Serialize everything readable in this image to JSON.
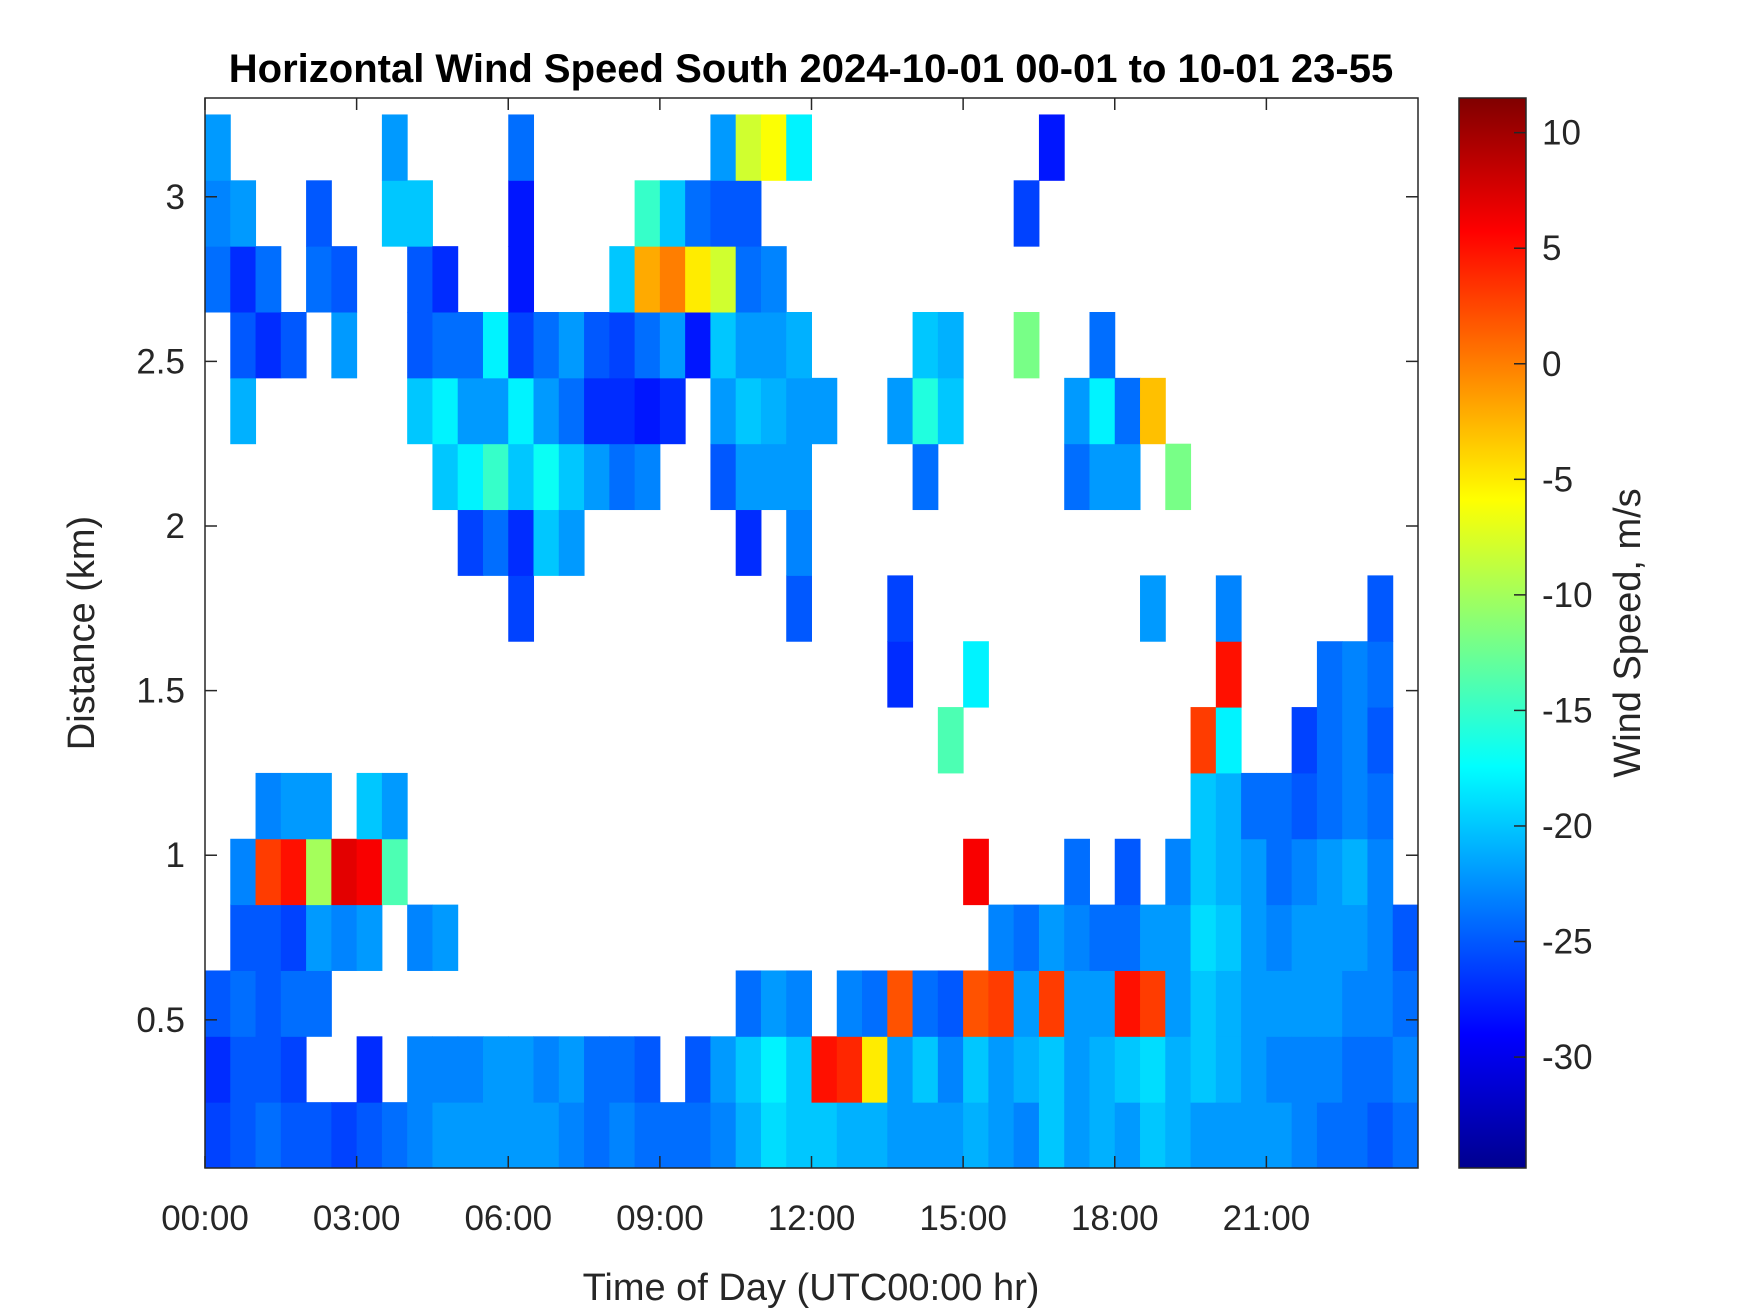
{
  "chart_data": {
    "type": "heatmap",
    "title": "Horizontal Wind Speed South 2024-10-01 00-01 to 10-01 23-55",
    "xlabel": "Time of Day (UTC00:00 hr)",
    "ylabel": "Distance (km)",
    "colorbar_label": "Wind Speed, m/s",
    "colormap": "jet",
    "xlim": [
      0,
      24
    ],
    "ylim": [
      0.05,
      3.3
    ],
    "clim": [
      -34.8,
      11.5
    ],
    "x_ticks": [
      0,
      3,
      6,
      9,
      12,
      15,
      18,
      21
    ],
    "x_tick_labels": [
      "00:00",
      "03:00",
      "06:00",
      "09:00",
      "12:00",
      "15:00",
      "18:00",
      "21:00"
    ],
    "y_ticks": [
      0.5,
      1,
      1.5,
      2,
      2.5,
      3
    ],
    "y_tick_labels": [
      "0.5",
      "1",
      "1.5",
      "2",
      "2.5",
      "3"
    ],
    "colorbar_ticks": [
      10,
      5,
      0,
      -5,
      -10,
      -15,
      -20,
      -25,
      -30
    ],
    "colorbar_tick_labels": [
      "10",
      "5",
      "0",
      "-5",
      "-10",
      "-15",
      "-20",
      "-25",
      "-30"
    ],
    "grid": false,
    "x_bin_hours": 0.5,
    "y_bin_centers_km": [
      0.15,
      0.35,
      0.55,
      0.75,
      0.95,
      1.15,
      1.35,
      1.55,
      1.75,
      1.95,
      2.15,
      2.35,
      2.55,
      2.75,
      2.95,
      3.15
    ],
    "z": [
      [
        -26,
        -27,
        -25,
        null,
        null,
        null,
        null,
        null,
        null,
        null,
        null,
        null,
        null,
        -24,
        -23,
        -22
      ],
      [
        -25,
        -25,
        -24,
        -25,
        -23,
        null,
        null,
        null,
        null,
        null,
        null,
        -21,
        -25,
        -27,
        -22,
        null
      ],
      [
        -24,
        -25,
        -25,
        -25,
        3,
        -23,
        null,
        null,
        null,
        null,
        null,
        null,
        -27,
        -24,
        null,
        null
      ],
      [
        -25,
        -26,
        -24,
        -26,
        5,
        -22,
        null,
        null,
        null,
        null,
        null,
        null,
        -25,
        null,
        null,
        null
      ],
      [
        -25,
        null,
        -24,
        -22,
        -10,
        -22,
        null,
        null,
        null,
        null,
        null,
        null,
        null,
        -24,
        -25,
        null
      ],
      [
        -26,
        null,
        null,
        -23,
        7,
        null,
        null,
        null,
        null,
        null,
        null,
        null,
        -22,
        -25,
        null,
        null
      ],
      [
        -25,
        -27,
        null,
        -22,
        6,
        -20,
        null,
        null,
        null,
        null,
        null,
        null,
        null,
        null,
        null,
        null
      ],
      [
        -24,
        null,
        null,
        null,
        -14,
        -22,
        null,
        null,
        null,
        null,
        null,
        null,
        null,
        null,
        -20,
        -22
      ],
      [
        -23,
        -23,
        null,
        -23,
        null,
        null,
        null,
        null,
        null,
        null,
        null,
        -20,
        -25,
        -25,
        -20,
        null
      ],
      [
        -22,
        -23,
        null,
        -22,
        null,
        null,
        null,
        null,
        null,
        null,
        -20,
        -18,
        -24,
        -27,
        null,
        null
      ],
      [
        -22,
        -23,
        null,
        null,
        null,
        null,
        null,
        null,
        null,
        -26,
        -18,
        -22,
        -24,
        null,
        null,
        null
      ],
      [
        -22,
        -22,
        null,
        null,
        null,
        null,
        null,
        null,
        null,
        -24,
        -15,
        -22,
        -18,
        null,
        null,
        null
      ],
      [
        -22,
        -22,
        null,
        null,
        null,
        null,
        null,
        null,
        -26,
        -27,
        -20,
        -18,
        -26,
        -28,
        -28,
        -24
      ],
      [
        -22,
        -23,
        null,
        null,
        null,
        null,
        null,
        null,
        null,
        -20,
        -17,
        -22,
        -24,
        null,
        null,
        null
      ],
      [
        -23,
        -22,
        null,
        null,
        null,
        null,
        null,
        null,
        null,
        -22,
        -20,
        -24,
        -22,
        null,
        null,
        null
      ],
      [
        -24,
        -24,
        null,
        null,
        null,
        null,
        null,
        null,
        null,
        null,
        -22,
        -27,
        -25,
        null,
        null,
        null
      ],
      [
        -23,
        -24,
        null,
        null,
        null,
        null,
        null,
        null,
        null,
        null,
        -24,
        -27,
        -26,
        -20,
        null,
        null
      ],
      [
        -24,
        -25,
        null,
        null,
        null,
        null,
        null,
        null,
        null,
        null,
        -23,
        -28,
        -24,
        -2,
        -15,
        null
      ],
      [
        -24,
        null,
        null,
        null,
        null,
        null,
        null,
        null,
        null,
        null,
        null,
        -27,
        -22,
        0,
        -20,
        null
      ],
      [
        -24,
        -25,
        null,
        null,
        null,
        null,
        null,
        null,
        null,
        null,
        null,
        null,
        -28,
        -5,
        -24,
        null
      ],
      [
        -23,
        -22,
        null,
        null,
        null,
        null,
        null,
        null,
        null,
        null,
        -25,
        -22,
        -20,
        -8,
        -25,
        -22
      ],
      [
        -21,
        -20,
        -24,
        null,
        null,
        null,
        null,
        null,
        null,
        -27,
        -22,
        -20,
        -22,
        -24,
        -25,
        -8
      ],
      [
        -19,
        -18,
        -22,
        null,
        null,
        null,
        null,
        null,
        null,
        null,
        -22,
        -21,
        -22,
        -23,
        null,
        -6
      ],
      [
        -20,
        -20,
        -23,
        null,
        null,
        null,
        null,
        null,
        -25,
        -23,
        -22,
        -22,
        -21,
        null,
        null,
        -18
      ],
      [
        -20,
        5,
        null,
        null,
        null,
        null,
        null,
        null,
        null,
        null,
        null,
        -22,
        null,
        null,
        null,
        null
      ],
      [
        -21,
        4,
        -23,
        null,
        null,
        null,
        null,
        null,
        null,
        null,
        null,
        null,
        null,
        null,
        null,
        null
      ],
      [
        -21,
        -5,
        -24,
        null,
        null,
        null,
        null,
        null,
        null,
        null,
        null,
        null,
        null,
        null,
        null,
        null
      ],
      [
        -22,
        -22,
        2,
        null,
        null,
        null,
        null,
        -27,
        -26,
        null,
        null,
        -22,
        null,
        null,
        null,
        null
      ],
      [
        -22,
        -20,
        -24,
        null,
        null,
        null,
        null,
        null,
        null,
        null,
        -24,
        -16,
        -20,
        null,
        null,
        null
      ],
      [
        -22,
        -23,
        -25,
        null,
        null,
        null,
        -14,
        null,
        null,
        null,
        null,
        -20,
        -21,
        null,
        null,
        null
      ],
      [
        -21,
        -20,
        2,
        null,
        6,
        null,
        null,
        -18,
        null,
        null,
        null,
        null,
        null,
        null,
        null,
        null
      ],
      [
        -22,
        -22,
        3,
        -23,
        null,
        null,
        null,
        null,
        null,
        null,
        null,
        null,
        null,
        null,
        null,
        null
      ],
      [
        -23,
        -21,
        -22,
        -24,
        null,
        null,
        null,
        null,
        null,
        null,
        null,
        null,
        -12,
        null,
        -26,
        null
      ],
      [
        -20,
        -20,
        3,
        -22,
        null,
        null,
        null,
        null,
        null,
        null,
        null,
        null,
        null,
        null,
        null,
        -28
      ],
      [
        -22,
        -22,
        -22,
        -23,
        -24,
        null,
        null,
        null,
        null,
        null,
        -24,
        -22,
        null,
        null,
        null,
        null
      ],
      [
        -21,
        -21,
        -22,
        -24,
        null,
        null,
        null,
        null,
        null,
        null,
        -22,
        -18,
        -24,
        null,
        null,
        null
      ],
      [
        -22,
        -20,
        5,
        -24,
        -25,
        null,
        null,
        null,
        null,
        null,
        -22,
        -24,
        null,
        null,
        null,
        null
      ],
      [
        -20,
        -19,
        3,
        -22,
        null,
        null,
        null,
        null,
        -22,
        null,
        null,
        -3,
        null,
        null,
        null,
        null
      ],
      [
        -21,
        -21,
        -22,
        -22,
        -23,
        null,
        null,
        null,
        null,
        null,
        -12,
        null,
        null,
        null,
        null,
        null
      ],
      [
        -22,
        -20,
        -20,
        -19,
        -20,
        -20,
        3,
        null,
        null,
        null,
        null,
        null,
        null,
        null,
        null,
        null
      ],
      [
        -22,
        -21,
        -21,
        -20,
        -21,
        -21,
        -18,
        5,
        -23,
        null,
        null,
        null,
        null,
        null,
        null,
        null
      ],
      [
        -22,
        -22,
        -22,
        -22,
        -22,
        -24,
        null,
        null,
        null,
        null,
        null,
        null,
        null,
        null,
        null,
        null
      ],
      [
        -22,
        -23,
        -22,
        -23,
        -24,
        -24,
        null,
        null,
        null,
        null,
        null,
        null,
        null,
        null,
        null,
        null
      ],
      [
        -23,
        -23,
        -22,
        -22,
        -23,
        -25,
        -26,
        null,
        null,
        null,
        null,
        null,
        null,
        null,
        null,
        null
      ],
      [
        -24,
        -23,
        -22,
        -22,
        -22,
        -24,
        -24,
        -24,
        null,
        null,
        null,
        null,
        null,
        null,
        null,
        null
      ],
      [
        -24,
        -24,
        -23,
        -22,
        -21,
        -23,
        -23,
        -23,
        null,
        null,
        null,
        null,
        null,
        null,
        null,
        null
      ],
      [
        -25,
        -24,
        -23,
        -23,
        -23,
        -24,
        -25,
        -24,
        -25,
        null,
        null,
        null,
        null,
        null,
        null,
        null
      ],
      [
        -24,
        -23,
        -24,
        -25,
        null,
        null,
        null,
        null,
        null,
        null,
        null,
        null,
        null,
        null,
        null,
        null
      ]
    ]
  }
}
